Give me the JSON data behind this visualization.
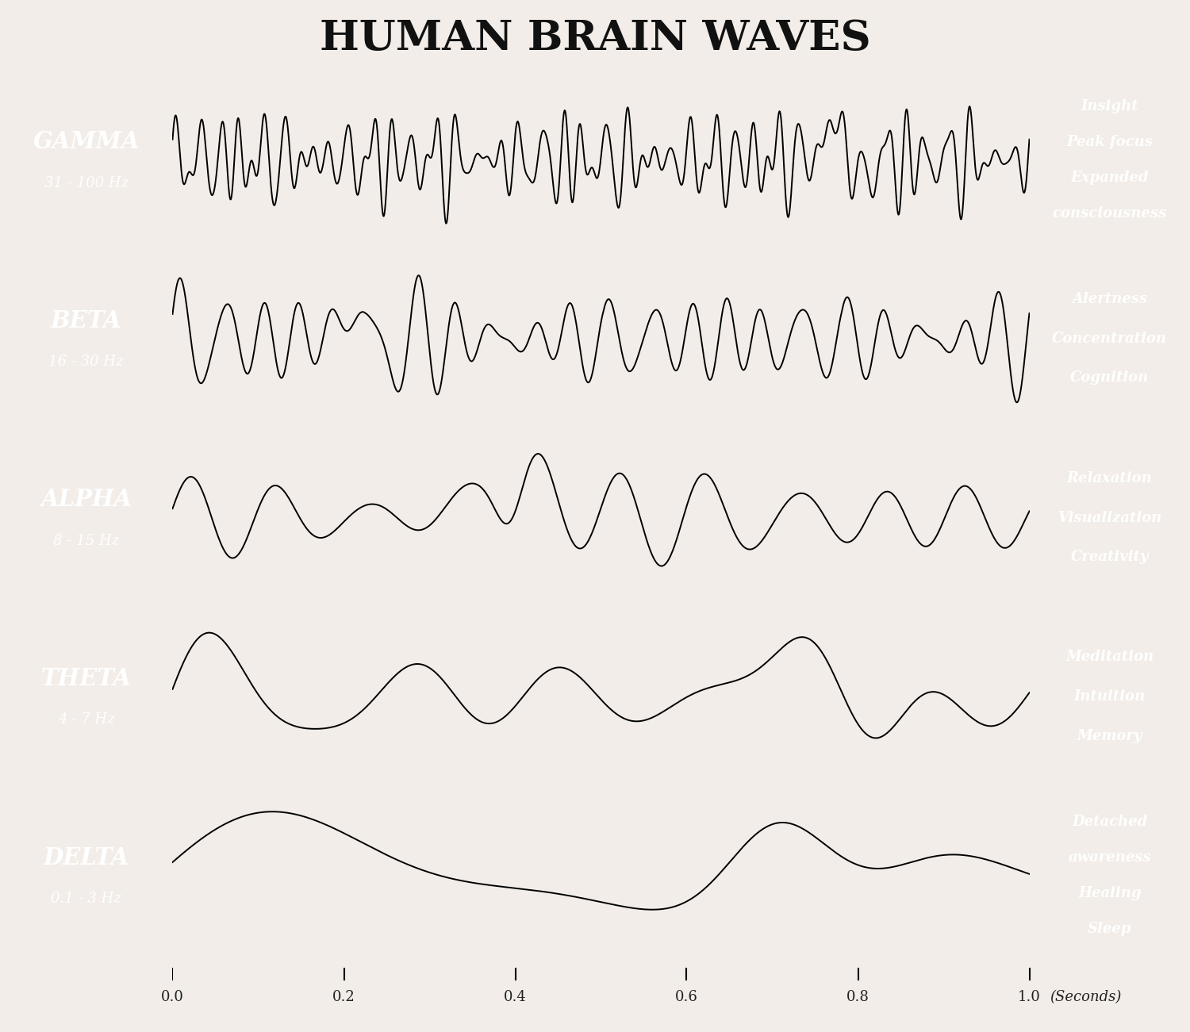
{
  "title": "HUMAN BRAIN WAVES",
  "bands": [
    {
      "name": "GAMMA",
      "freq": "31 - 100 Hz",
      "wave_bg": "#b8c8dc",
      "left_bg": "#8090a4",
      "right_bg": "#8898ac",
      "attributes": [
        "Insight",
        "Peak focus",
        "Expanded",
        "consciousness"
      ]
    },
    {
      "name": "BETA",
      "freq": "16 - 30 Hz",
      "wave_bg": "#b4be90",
      "left_bg": "#7a8a6a",
      "right_bg": "#828e72",
      "attributes": [
        "Alertness",
        "Concentration",
        "Cognition"
      ]
    },
    {
      "name": "ALPHA",
      "freq": "8 - 15 Hz",
      "wave_bg": "#f0cc80",
      "left_bg": "#b09878",
      "right_bg": "#b8a070",
      "attributes": [
        "Relaxation",
        "Visualization",
        "Creativity"
      ]
    },
    {
      "name": "THETA",
      "freq": "4 - 7 Hz",
      "wave_bg": "#e0a882",
      "left_bg": "#a87a60",
      "right_bg": "#b08068",
      "attributes": [
        "Meditation",
        "Intuition",
        "Memory"
      ]
    },
    {
      "name": "DELTA",
      "freq": "0.1 - 3 Hz",
      "wave_bg": "#d08060",
      "left_bg": "#907060",
      "right_bg": "#987068",
      "attributes": [
        "Detached",
        "awareness",
        "Healing",
        "Sleep"
      ]
    }
  ],
  "bg_color": "#f2ede8",
  "xticks": [
    0.0,
    0.2,
    0.4,
    0.6,
    0.8,
    1.0
  ],
  "xlabel": "(Seconds)"
}
